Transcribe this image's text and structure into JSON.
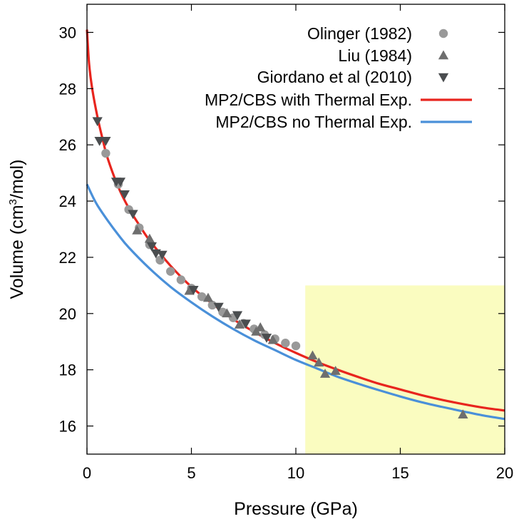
{
  "chart_data": {
    "type": "scatter",
    "title": "",
    "xlabel": "Pressure (GPa)",
    "ylabel_parts": [
      "Volume (cm",
      "3",
      "/mol)"
    ],
    "xlim": [
      0,
      20
    ],
    "ylim": [
      15,
      31
    ],
    "xticks": [
      0,
      5,
      10,
      15,
      20
    ],
    "yticks": [
      16,
      18,
      20,
      22,
      24,
      26,
      28,
      30
    ],
    "shaded_region": {
      "x": [
        10.45,
        20
      ],
      "y": [
        15,
        21
      ],
      "color": "#fafcc0"
    },
    "series": [
      {
        "name": "Olinger (1982)",
        "marker": "circle",
        "color": "#999999",
        "points": [
          [
            0.9,
            25.7
          ],
          [
            1.5,
            24.6
          ],
          [
            2.0,
            23.7
          ],
          [
            2.5,
            23.05
          ],
          [
            3.0,
            22.45
          ],
          [
            3.5,
            21.9
          ],
          [
            4.0,
            21.5
          ],
          [
            4.5,
            21.2
          ],
          [
            5.0,
            20.9
          ],
          [
            5.5,
            20.6
          ],
          [
            6.0,
            20.3
          ],
          [
            6.5,
            20.05
          ],
          [
            7.0,
            19.85
          ],
          [
            7.5,
            19.65
          ],
          [
            8.0,
            19.45
          ],
          [
            8.5,
            19.25
          ],
          [
            9.0,
            19.1
          ],
          [
            9.5,
            18.95
          ],
          [
            10.0,
            18.85
          ]
        ]
      },
      {
        "name": "Liu (1984)",
        "marker": "triangle-up",
        "color": "#6e6e6e",
        "points": [
          [
            2.4,
            22.95
          ],
          [
            3.0,
            22.65
          ],
          [
            4.9,
            20.8
          ],
          [
            5.8,
            20.55
          ],
          [
            6.7,
            20.0
          ],
          [
            7.3,
            19.6
          ],
          [
            8.1,
            19.35
          ],
          [
            8.3,
            19.5
          ],
          [
            8.9,
            19.05
          ],
          [
            10.8,
            18.5
          ],
          [
            11.1,
            18.25
          ],
          [
            11.4,
            17.85
          ],
          [
            11.9,
            17.95
          ],
          [
            18.0,
            16.4
          ]
        ]
      },
      {
        "name": "Giordano et al (2010)",
        "marker": "triangle-down",
        "color": "#4a4d4f",
        "points": [
          [
            0.5,
            26.85
          ],
          [
            0.6,
            26.15
          ],
          [
            0.9,
            26.15
          ],
          [
            1.4,
            24.7
          ],
          [
            1.6,
            24.7
          ],
          [
            1.8,
            24.25
          ],
          [
            2.2,
            23.55
          ],
          [
            3.1,
            22.4
          ],
          [
            3.3,
            22.15
          ],
          [
            3.6,
            22.1
          ],
          [
            5.1,
            20.85
          ],
          [
            6.3,
            20.25
          ],
          [
            7.2,
            19.95
          ],
          [
            7.6,
            19.65
          ],
          [
            8.6,
            19.15
          ]
        ]
      },
      {
        "name": "MP2/CBS with Thermal Exp.",
        "marker": "line",
        "color": "#e8251e",
        "x": [
          0,
          0.1,
          0.25,
          0.5,
          0.75,
          1,
          1.5,
          2,
          2.5,
          3,
          4,
          5,
          6,
          7,
          8,
          9,
          10,
          11,
          12,
          13,
          14,
          15,
          16,
          17,
          18,
          19,
          20
        ],
        "y": [
          30.1,
          28.9,
          28.0,
          27.0,
          26.2,
          25.5,
          24.5,
          23.75,
          23.15,
          22.6,
          21.7,
          20.95,
          20.35,
          19.8,
          19.35,
          18.95,
          18.6,
          18.28,
          18.0,
          17.74,
          17.5,
          17.3,
          17.1,
          16.93,
          16.78,
          16.65,
          16.55
        ]
      },
      {
        "name": "MP2/CBS no Thermal Exp.",
        "marker": "line",
        "color": "#4a90d9",
        "x": [
          0,
          0.25,
          0.5,
          1,
          1.5,
          2,
          3,
          4,
          5,
          6,
          7,
          8,
          9,
          10,
          11,
          12,
          13,
          14,
          15,
          16,
          17,
          18,
          19,
          20
        ],
        "y": [
          24.6,
          24.2,
          23.85,
          23.3,
          22.8,
          22.35,
          21.6,
          20.95,
          20.4,
          19.9,
          19.45,
          19.05,
          18.7,
          18.35,
          18.05,
          17.75,
          17.5,
          17.27,
          17.05,
          16.85,
          16.68,
          16.52,
          16.37,
          16.25
        ]
      }
    ]
  }
}
